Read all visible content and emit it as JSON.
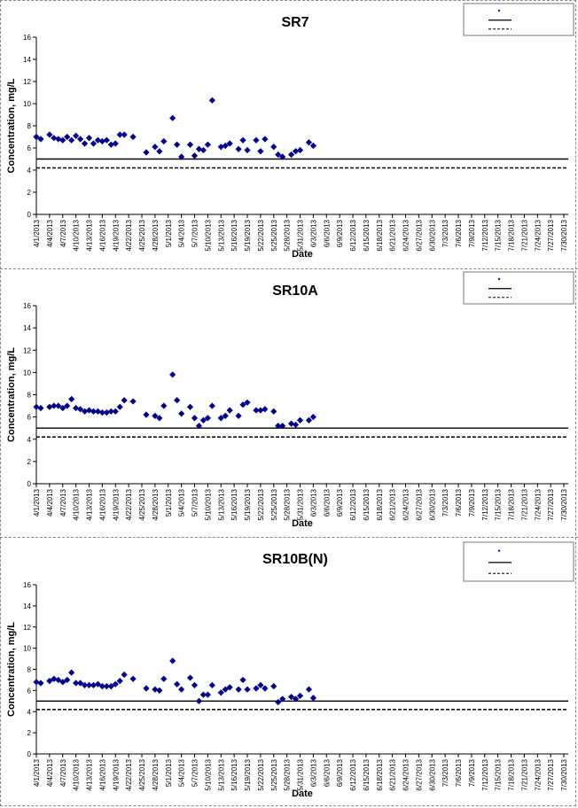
{
  "chart_data": [
    {
      "type": "scatter",
      "title": "SR7",
      "xlabel": "Date",
      "ylabel": "Concentration, mg/L",
      "ylim": [
        0,
        16
      ],
      "yticks": [
        "0",
        "2",
        "4",
        "6",
        "8",
        "10",
        "12",
        "14",
        "16"
      ],
      "xticks": [
        "4/1/2013",
        "4/4/2013",
        "4/7/2013",
        "4/10/2013",
        "4/13/2013",
        "4/16/2013",
        "4/19/2013",
        "4/22/2013",
        "4/25/2013",
        "4/28/2013",
        "5/1/2013",
        "5/4/2013",
        "5/7/2013",
        "5/10/2013",
        "5/13/2013",
        "5/16/2013",
        "5/19/2013",
        "5/22/2013",
        "5/25/2013",
        "5/28/2013",
        "5/31/2013",
        "6/3/2013",
        "6/6/2013",
        "6/9/2013",
        "6/12/2013",
        "6/15/2013",
        "6/18/2013",
        "6/21/2013",
        "6/24/2013",
        "6/27/2013",
        "6/30/2013",
        "7/3/2013",
        "7/6/2013",
        "7/9/2013",
        "7/12/2013",
        "7/15/2013",
        "7/18/2013",
        "7/21/2013",
        "7/24/2013",
        "7/27/2013",
        "7/30/2013"
      ],
      "x_day_range": [
        0,
        121
      ],
      "hlines": [
        {
          "value": 5.0,
          "style": "solid"
        },
        {
          "value": 4.2,
          "style": "dashed"
        }
      ],
      "legend_position": "top-right",
      "points": [
        [
          0,
          7.0
        ],
        [
          1,
          6.8
        ],
        [
          3,
          7.2
        ],
        [
          4,
          6.9
        ],
        [
          5,
          6.8
        ],
        [
          6,
          6.7
        ],
        [
          7,
          7.0
        ],
        [
          8,
          6.7
        ],
        [
          9,
          7.1
        ],
        [
          10,
          6.8
        ],
        [
          11,
          6.4
        ],
        [
          12,
          6.9
        ],
        [
          13,
          6.4
        ],
        [
          14,
          6.7
        ],
        [
          15,
          6.6
        ],
        [
          16,
          6.7
        ],
        [
          17,
          6.3
        ],
        [
          18,
          6.4
        ],
        [
          19,
          7.2
        ],
        [
          20,
          7.2
        ],
        [
          22,
          7.0
        ],
        [
          25,
          5.6
        ],
        [
          27,
          6.1
        ],
        [
          28,
          5.7
        ],
        [
          29,
          6.6
        ],
        [
          31,
          8.7
        ],
        [
          32,
          6.3
        ],
        [
          33,
          5.2
        ],
        [
          35,
          6.3
        ],
        [
          36,
          5.3
        ],
        [
          37,
          5.9
        ],
        [
          38,
          5.8
        ],
        [
          39,
          6.3
        ],
        [
          40,
          10.3
        ],
        [
          42,
          6.1
        ],
        [
          43,
          6.2
        ],
        [
          44,
          6.4
        ],
        [
          46,
          5.9
        ],
        [
          47,
          6.7
        ],
        [
          48,
          5.8
        ],
        [
          50,
          6.7
        ],
        [
          51,
          5.7
        ],
        [
          52,
          6.8
        ],
        [
          54,
          6.1
        ],
        [
          55,
          5.4
        ],
        [
          56,
          5.2
        ],
        [
          58,
          5.4
        ],
        [
          59,
          5.7
        ],
        [
          60,
          5.8
        ],
        [
          62,
          6.5
        ],
        [
          63,
          6.2
        ]
      ]
    },
    {
      "type": "scatter",
      "title": "SR10A",
      "xlabel": "Date",
      "ylabel": "Concentration, mg/L",
      "ylim": [
        0,
        16
      ],
      "yticks": [
        "0",
        "2",
        "4",
        "6",
        "8",
        "10",
        "12",
        "14",
        "16"
      ],
      "xticks": [
        "4/1/2013",
        "4/4/2013",
        "4/7/2013",
        "4/10/2013",
        "4/13/2013",
        "4/16/2013",
        "4/19/2013",
        "4/22/2013",
        "4/25/2013",
        "4/28/2013",
        "5/1/2013",
        "5/4/2013",
        "5/7/2013",
        "5/10/2013",
        "5/13/2013",
        "5/16/2013",
        "5/19/2013",
        "5/22/2013",
        "5/25/2013",
        "5/28/2013",
        "5/31/2013",
        "6/3/2013",
        "6/6/2013",
        "6/9/2013",
        "6/12/2013",
        "6/15/2013",
        "6/18/2013",
        "6/21/2013",
        "6/24/2013",
        "6/27/2013",
        "6/30/2013",
        "7/3/2013",
        "7/6/2013",
        "7/9/2013",
        "7/12/2013",
        "7/15/2013",
        "7/18/2013",
        "7/21/2013",
        "7/24/2013",
        "7/27/2013",
        "7/30/2013"
      ],
      "x_day_range": [
        0,
        121
      ],
      "hlines": [
        {
          "value": 5.0,
          "style": "solid"
        },
        {
          "value": 4.2,
          "style": "dashed"
        }
      ],
      "legend_position": "top-right",
      "points": [
        [
          0,
          6.9
        ],
        [
          1,
          6.8
        ],
        [
          3,
          6.9
        ],
        [
          4,
          7.0
        ],
        [
          5,
          7.0
        ],
        [
          6,
          6.8
        ],
        [
          7,
          7.0
        ],
        [
          8,
          7.6
        ],
        [
          9,
          6.8
        ],
        [
          10,
          6.7
        ],
        [
          11,
          6.5
        ],
        [
          12,
          6.6
        ],
        [
          13,
          6.5
        ],
        [
          14,
          6.5
        ],
        [
          15,
          6.4
        ],
        [
          16,
          6.4
        ],
        [
          17,
          6.5
        ],
        [
          18,
          6.5
        ],
        [
          19,
          6.9
        ],
        [
          20,
          7.5
        ],
        [
          22,
          7.4
        ],
        [
          25,
          6.2
        ],
        [
          27,
          6.1
        ],
        [
          28,
          5.9
        ],
        [
          29,
          7.0
        ],
        [
          31,
          9.8
        ],
        [
          32,
          7.5
        ],
        [
          33,
          6.3
        ],
        [
          35,
          6.9
        ],
        [
          36,
          5.9
        ],
        [
          37,
          5.2
        ],
        [
          38,
          5.7
        ],
        [
          39,
          5.9
        ],
        [
          40,
          7.0
        ],
        [
          42,
          5.9
        ],
        [
          43,
          6.1
        ],
        [
          44,
          6.6
        ],
        [
          46,
          6.1
        ],
        [
          47,
          7.1
        ],
        [
          48,
          7.3
        ],
        [
          50,
          6.6
        ],
        [
          51,
          6.6
        ],
        [
          52,
          6.7
        ],
        [
          54,
          6.5
        ],
        [
          55,
          5.2
        ],
        [
          56,
          5.2
        ],
        [
          58,
          5.4
        ],
        [
          59,
          5.3
        ],
        [
          60,
          5.7
        ],
        [
          62,
          5.7
        ],
        [
          63,
          6.0
        ]
      ]
    },
    {
      "type": "scatter",
      "title": "SR10B(N)",
      "xlabel": "Date",
      "ylabel": "Concentration, mg/L",
      "ylim": [
        0,
        16
      ],
      "yticks": [
        "0",
        "2",
        "4",
        "6",
        "8",
        "10",
        "12",
        "14",
        "16"
      ],
      "xticks": [
        "4/1/2013",
        "4/4/2013",
        "4/7/2013",
        "4/10/2013",
        "4/13/2013",
        "4/16/2013",
        "4/19/2013",
        "4/22/2013",
        "4/25/2013",
        "4/28/2013",
        "5/1/2013",
        "5/4/2013",
        "5/7/2013",
        "5/10/2013",
        "5/13/2013",
        "5/16/2013",
        "5/19/2013",
        "5/22/2013",
        "5/25/2013",
        "5/28/2013",
        "5/31/2013",
        "6/3/2013",
        "6/6/2013",
        "6/9/2013",
        "6/12/2013",
        "6/15/2013",
        "6/18/2013",
        "6/21/2013",
        "6/24/2013",
        "6/27/2013",
        "6/30/2013",
        "7/3/2013",
        "7/6/2013",
        "7/9/2013",
        "7/12/2013",
        "7/15/2013",
        "7/18/2013",
        "7/21/2013",
        "7/24/2013",
        "7/27/2013",
        "7/30/2013"
      ],
      "x_day_range": [
        0,
        121
      ],
      "hlines": [
        {
          "value": 5.0,
          "style": "solid"
        },
        {
          "value": 4.2,
          "style": "dashed"
        }
      ],
      "legend_position": "top-right",
      "points": [
        [
          0,
          6.8
        ],
        [
          1,
          6.7
        ],
        [
          3,
          6.9
        ],
        [
          4,
          7.1
        ],
        [
          5,
          7.0
        ],
        [
          6,
          6.8
        ],
        [
          7,
          7.0
        ],
        [
          8,
          7.7
        ],
        [
          9,
          6.7
        ],
        [
          10,
          6.7
        ],
        [
          11,
          6.5
        ],
        [
          12,
          6.5
        ],
        [
          13,
          6.5
        ],
        [
          14,
          6.6
        ],
        [
          15,
          6.4
        ],
        [
          16,
          6.4
        ],
        [
          17,
          6.4
        ],
        [
          18,
          6.6
        ],
        [
          19,
          6.9
        ],
        [
          20,
          7.5
        ],
        [
          22,
          7.1
        ],
        [
          25,
          6.2
        ],
        [
          27,
          6.1
        ],
        [
          28,
          6.0
        ],
        [
          29,
          7.1
        ],
        [
          31,
          8.8
        ],
        [
          32,
          6.6
        ],
        [
          33,
          6.1
        ],
        [
          35,
          7.2
        ],
        [
          36,
          6.5
        ],
        [
          37,
          5.0
        ],
        [
          38,
          5.6
        ],
        [
          39,
          5.6
        ],
        [
          40,
          6.5
        ],
        [
          42,
          5.8
        ],
        [
          43,
          6.1
        ],
        [
          44,
          6.3
        ],
        [
          46,
          6.1
        ],
        [
          47,
          7.0
        ],
        [
          48,
          6.1
        ],
        [
          50,
          6.2
        ],
        [
          51,
          6.5
        ],
        [
          52,
          6.2
        ],
        [
          54,
          6.4
        ],
        [
          55,
          4.9
        ],
        [
          56,
          5.2
        ],
        [
          58,
          5.4
        ],
        [
          59,
          5.2
        ],
        [
          60,
          5.5
        ],
        [
          62,
          6.1
        ],
        [
          63,
          5.3
        ]
      ]
    }
  ]
}
